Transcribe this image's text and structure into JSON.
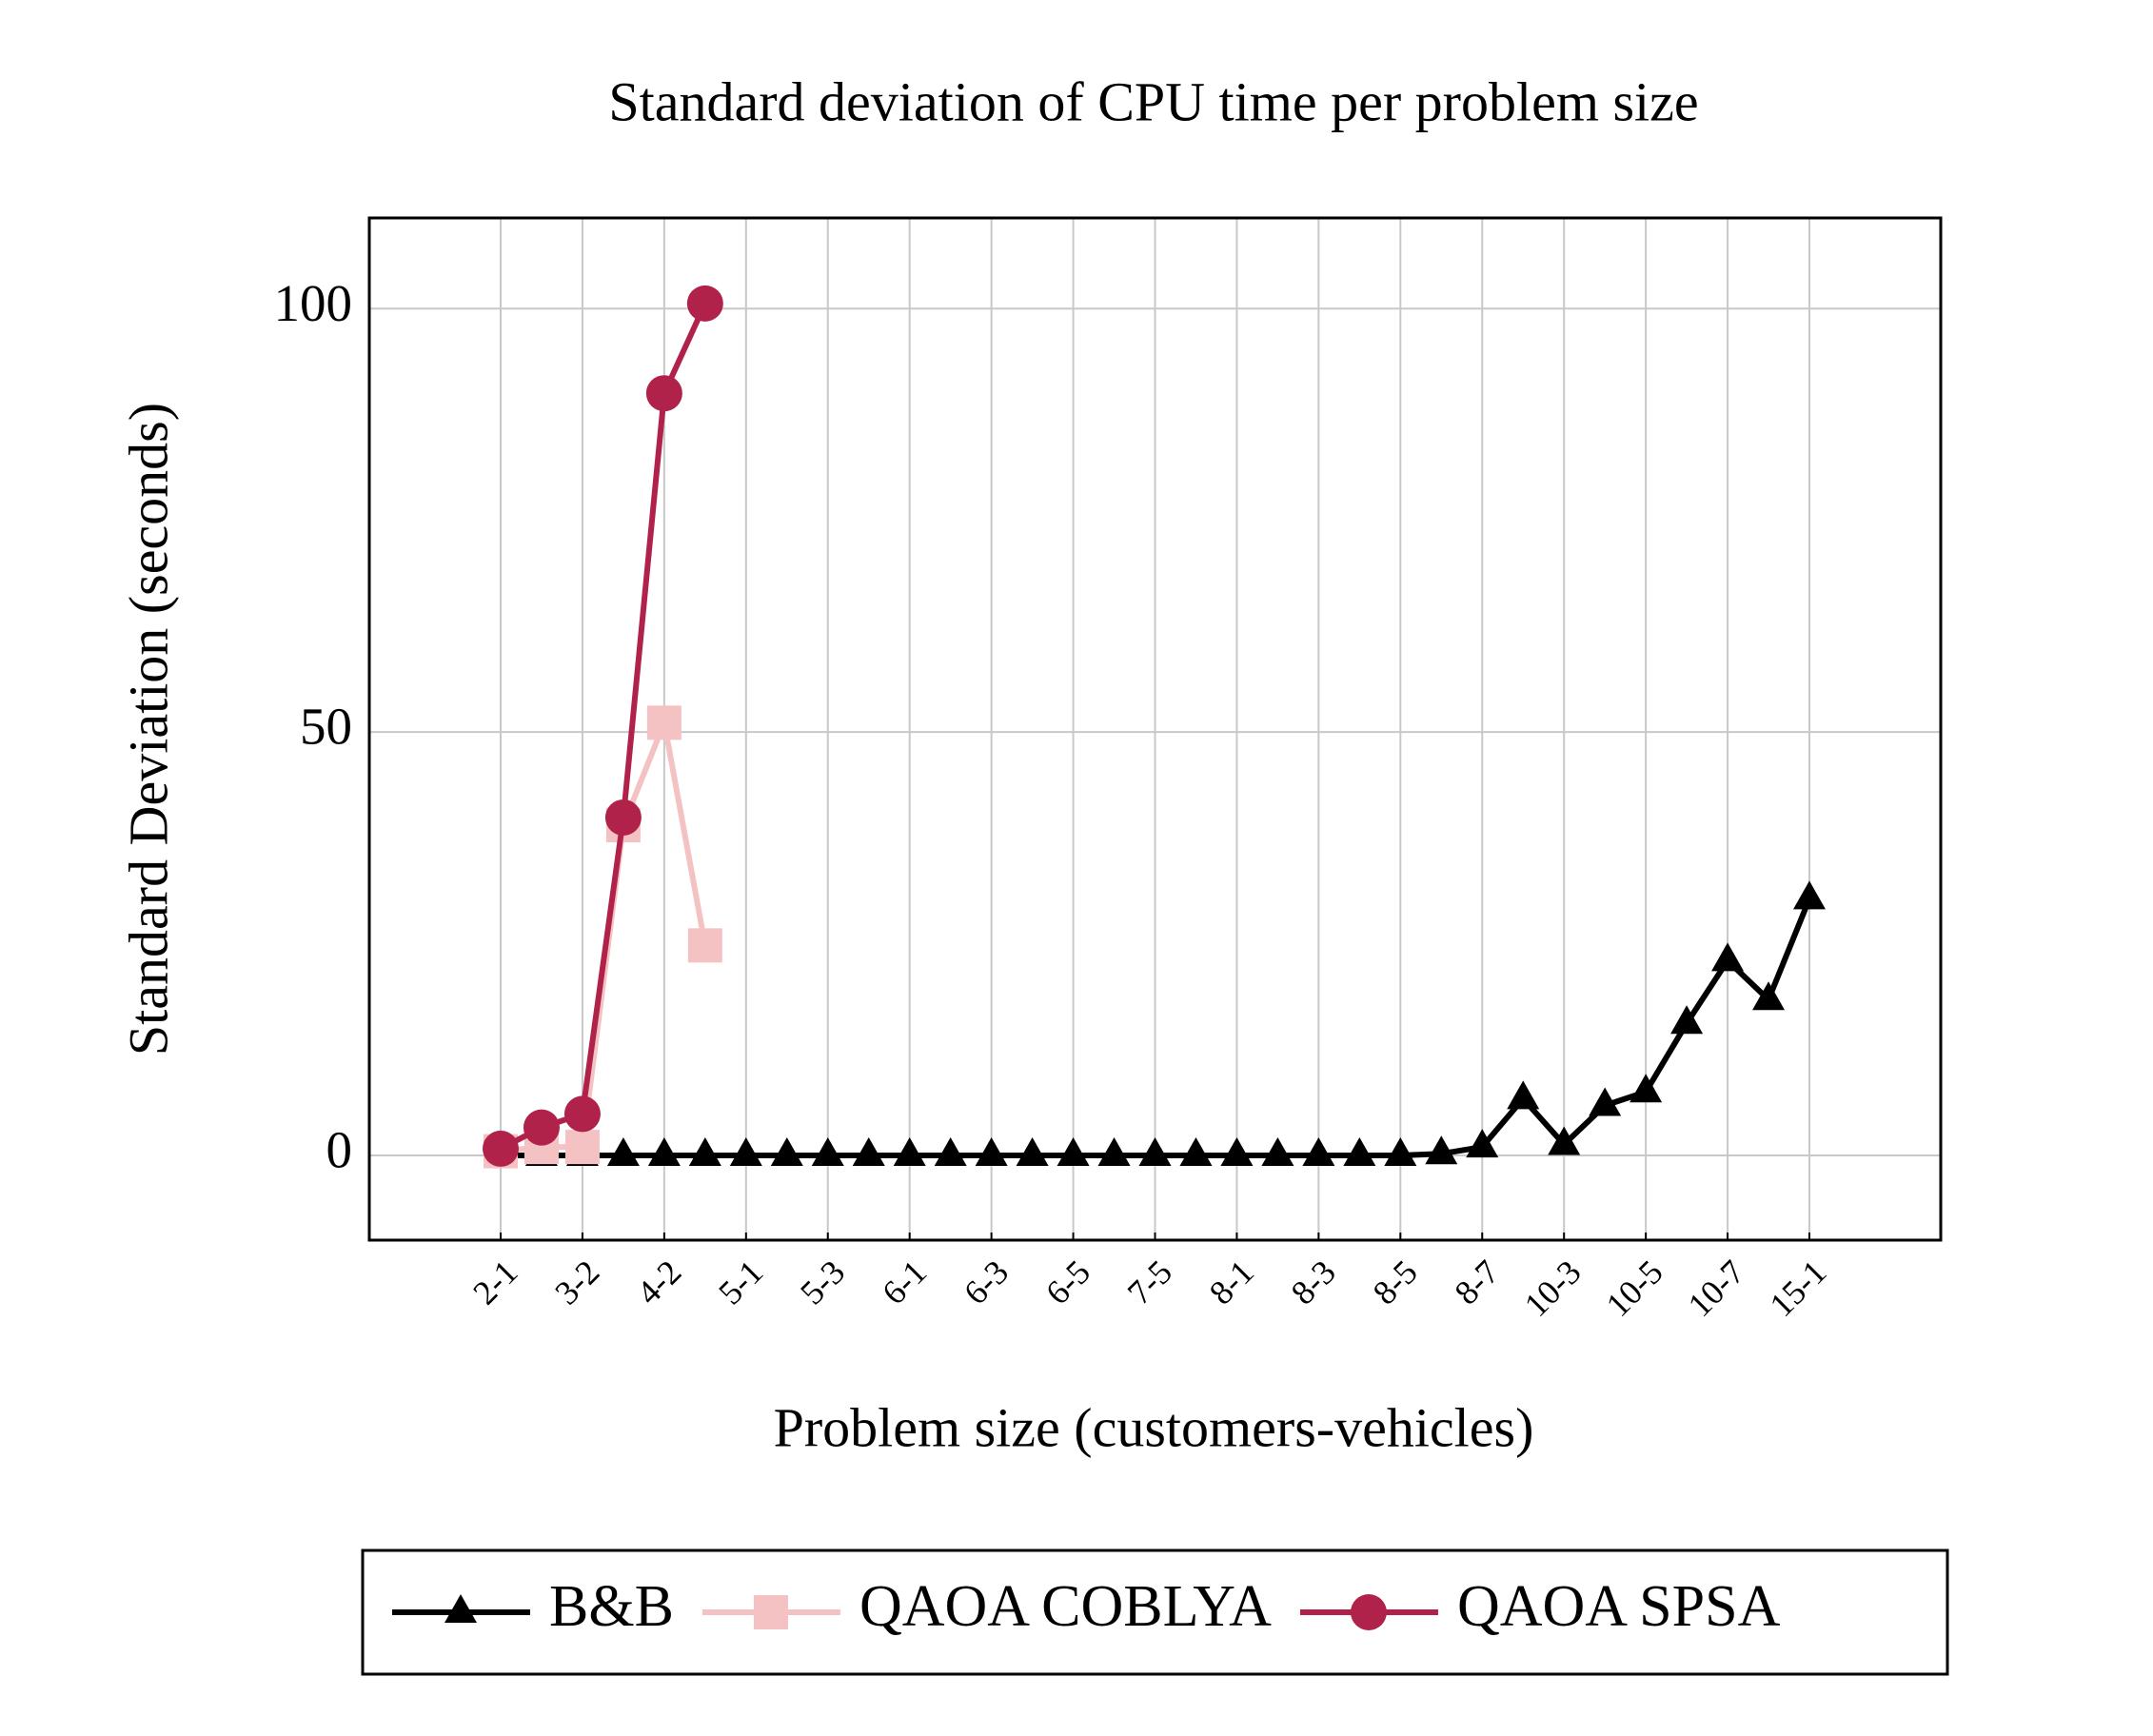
{
  "chart_data": {
    "type": "line",
    "title": "Standard deviation of CPU time per problem size",
    "x_label": "Problem size (customers-vehicles)",
    "y_label": "Standard Deviation (seconds)",
    "categories": [
      "2-1",
      null,
      "3-2",
      null,
      "4-2",
      null,
      "5-1",
      null,
      "5-3",
      null,
      "6-1",
      null,
      "6-3",
      null,
      "6-5",
      null,
      "7-5",
      null,
      "8-1",
      null,
      "8-3",
      null,
      "8-5",
      null,
      "8-7",
      null,
      "10-3",
      null,
      "10-5",
      null,
      "10-7",
      null,
      "15-1"
    ],
    "series": [
      {
        "name": "B&B",
        "color": "#000000",
        "marker": "triangle",
        "values": [
          0,
          0,
          0,
          0,
          0,
          0,
          0,
          0,
          0,
          0,
          0,
          0,
          0,
          0,
          0,
          0,
          0,
          0,
          0,
          0,
          0,
          0,
          0,
          0.2,
          1,
          6.7,
          1.3,
          5.9,
          7.5,
          15.6,
          23,
          18.4,
          30.3
        ]
      },
      {
        "name": "QAOA COBLYA",
        "color": "#f4c2c2",
        "marker": "square",
        "values": [
          0.5,
          1,
          1,
          39,
          51.1,
          24.8,
          null,
          null,
          null,
          null,
          null,
          null,
          null,
          null,
          null,
          null,
          null,
          null,
          null,
          null,
          null,
          null,
          null,
          null,
          null,
          null,
          null,
          null,
          null,
          null,
          null,
          null,
          null
        ]
      },
      {
        "name": "QAOA SPSA",
        "color": "#b0224a",
        "marker": "circle",
        "values": [
          0.8,
          3.3,
          4.9,
          39.9,
          90,
          100.6,
          null,
          null,
          null,
          null,
          null,
          null,
          null,
          null,
          null,
          null,
          null,
          null,
          null,
          null,
          null,
          null,
          null,
          null,
          null,
          null,
          null,
          null,
          null,
          null,
          null,
          null,
          null
        ]
      }
    ],
    "ylim": [
      -10,
      110.7
    ],
    "yticks": [
      0,
      50,
      100
    ],
    "grid": true,
    "legend": "bottom"
  }
}
